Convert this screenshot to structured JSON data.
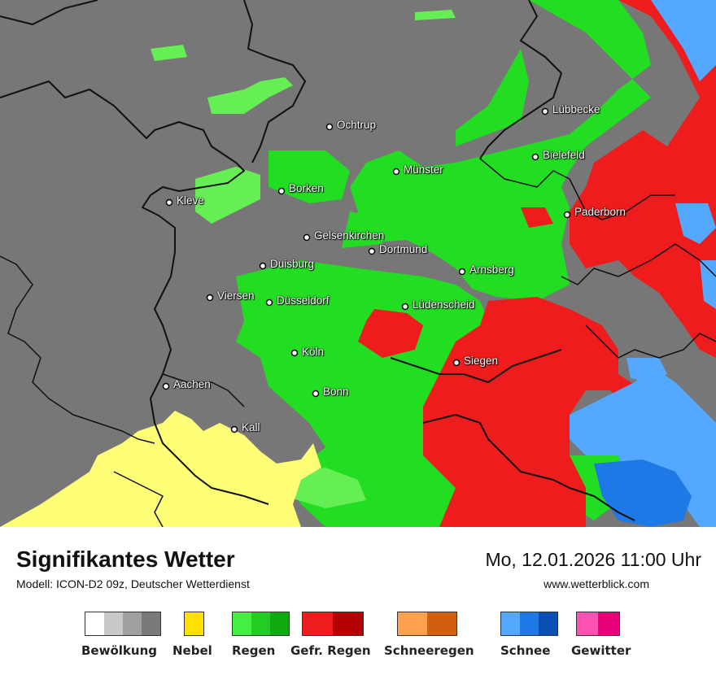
{
  "map": {
    "cities": [
      {
        "id": "ochtrup",
        "name": "Ochtrup"
      },
      {
        "id": "luebbecke",
        "name": "Lübbecke"
      },
      {
        "id": "bielefeld",
        "name": "Bielefeld"
      },
      {
        "id": "muenster",
        "name": "Münster"
      },
      {
        "id": "borken",
        "name": "Borken"
      },
      {
        "id": "kleve",
        "name": "Kleve"
      },
      {
        "id": "paderborn",
        "name": "Paderborn"
      },
      {
        "id": "gelsenkirchen",
        "name": "Gelsenkirchen"
      },
      {
        "id": "dortmund",
        "name": "Dortmund"
      },
      {
        "id": "duisburg",
        "name": "Duisburg"
      },
      {
        "id": "arnsberg",
        "name": "Arnsberg"
      },
      {
        "id": "viersen",
        "name": "Viersen"
      },
      {
        "id": "duesseldorf",
        "name": "Düsseldorf"
      },
      {
        "id": "luedenscheid",
        "name": "Lüdenscheid"
      },
      {
        "id": "koeln",
        "name": "Köln"
      },
      {
        "id": "siegen",
        "name": "Siegen"
      },
      {
        "id": "aachen",
        "name": "Aachen"
      },
      {
        "id": "bonn",
        "name": "Bonn"
      },
      {
        "id": "kall",
        "name": "Kall"
      }
    ]
  },
  "header": {
    "title": "Signifikantes Wetter",
    "model": "Modell: ICON-D2 09z, Deutscher Wetterdienst",
    "datetime": "Mo, 12.01.2026 11:00 Uhr",
    "website": "www.wetterblick.com"
  },
  "legend": [
    {
      "label": "Bewölkung",
      "colors": [
        "#ffffff",
        "#c8c8c8",
        "#a0a0a0",
        "#7a7a7a"
      ]
    },
    {
      "label": "Nebel",
      "colors": [
        "#ffe000"
      ]
    },
    {
      "label": "Regen",
      "colors": [
        "#44ee44",
        "#22cc22",
        "#10aa10"
      ]
    },
    {
      "label": "Gefr. Regen",
      "colors": [
        "#ee1c1c",
        "#b40000"
      ]
    },
    {
      "label": "Schneeregen",
      "colors": [
        "#ffa050",
        "#d06010"
      ]
    },
    {
      "label": "Schnee",
      "colors": [
        "#55a8ff",
        "#1e78e6",
        "#0a50b4"
      ]
    },
    {
      "label": "Gewitter",
      "colors": [
        "#ff50b4",
        "#e6007a"
      ]
    }
  ],
  "colors": {
    "cloud": "#777777",
    "rain": "#22dd22",
    "rain_light": "#66ee55",
    "freezing_rain": "#ee1c1c",
    "snow_light": "#55a8ff",
    "snow": "#1e78e6",
    "fog": "#ffff77"
  }
}
